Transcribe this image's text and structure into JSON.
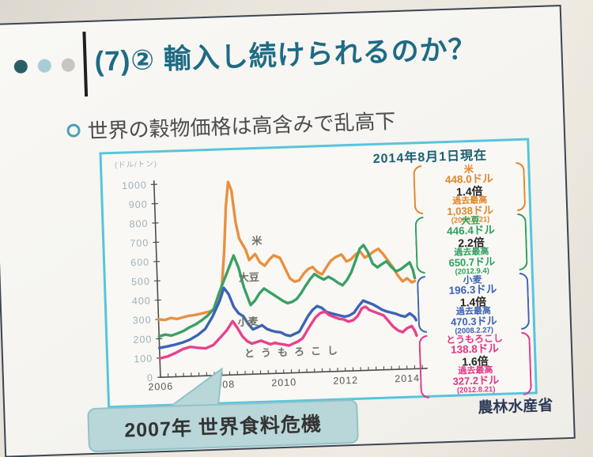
{
  "header": {
    "title": "(7)② 輸入し続けられるのか？",
    "title_color": "#1e6b84",
    "dots": [
      "#2b5f68",
      "#a7ced6",
      "#c6c6c3"
    ]
  },
  "bullet": {
    "text": "世界の穀物価格は高含みで乱高下"
  },
  "chart_panel": {
    "as_of": "2014年8月1日現在",
    "border_color": "#57c5dc",
    "commodity_boxes": [
      {
        "name": "米",
        "current": "448.0ドル",
        "multiplier": "1.4倍",
        "record_label": "過去最高",
        "record": "1,038ドル",
        "record_date": "(2008.5.21)",
        "color": "#e0862e"
      },
      {
        "name": "大豆",
        "current": "446.4ドル",
        "multiplier": "2.2倍",
        "record_label": "過去最高",
        "record": "650.7ドル",
        "record_date": "(2012.9.4)",
        "color": "#2f9e60"
      },
      {
        "name": "小麦",
        "current": "196.3ドル",
        "multiplier": "1.4倍",
        "record_label": "過去最高",
        "record": "470.3ドル",
        "record_date": "(2008.2.27)",
        "color": "#3c63b4"
      },
      {
        "name": "とうもろこし",
        "current": "138.8ドル",
        "multiplier": "1.6倍",
        "record_label": "過去最高",
        "record": "327.2ドル",
        "record_date": "(2012.8.21)",
        "color": "#e23487"
      }
    ]
  },
  "chart_data": {
    "type": "line",
    "ylabel": "(ドル/トン)",
    "xlim": [
      2006,
      2014.6
    ],
    "ylim": [
      0,
      1050
    ],
    "x_ticks": [
      2006,
      2008,
      2010,
      2012,
      2014
    ],
    "y_ticks": [
      0,
      100,
      200,
      300,
      400,
      500,
      600,
      700,
      800,
      900,
      1000
    ],
    "grid": false,
    "legend_position": "inline-labels",
    "series": [
      {
        "name": "米",
        "color": "#e89040",
        "label_pos": [
          186,
          120
        ],
        "label_spacing": 0,
        "points": [
          [
            2006.0,
            300
          ],
          [
            2006.2,
            296
          ],
          [
            2006.4,
            305
          ],
          [
            2006.6,
            299
          ],
          [
            2006.8,
            307
          ],
          [
            2007.0,
            314
          ],
          [
            2007.2,
            317
          ],
          [
            2007.4,
            323
          ],
          [
            2007.6,
            330
          ],
          [
            2007.8,
            338
          ],
          [
            2008.0,
            395
          ],
          [
            2008.1,
            480
          ],
          [
            2008.2,
            640
          ],
          [
            2008.3,
            870
          ],
          [
            2008.4,
            1000
          ],
          [
            2008.5,
            955
          ],
          [
            2008.6,
            790
          ],
          [
            2008.7,
            705
          ],
          [
            2008.9,
            645
          ],
          [
            2009.0,
            592
          ],
          [
            2009.2,
            622
          ],
          [
            2009.35,
            578
          ],
          [
            2009.5,
            560
          ],
          [
            2009.65,
            590
          ],
          [
            2009.8,
            612
          ],
          [
            2010.0,
            598
          ],
          [
            2010.15,
            545
          ],
          [
            2010.3,
            490
          ],
          [
            2010.45,
            472
          ],
          [
            2010.6,
            478
          ],
          [
            2010.75,
            512
          ],
          [
            2010.9,
            535
          ],
          [
            2011.05,
            545
          ],
          [
            2011.2,
            518
          ],
          [
            2011.35,
            505
          ],
          [
            2011.5,
            542
          ],
          [
            2011.65,
            575
          ],
          [
            2011.8,
            592
          ],
          [
            2012.0,
            605
          ],
          [
            2012.15,
            568
          ],
          [
            2012.3,
            578
          ],
          [
            2012.45,
            602
          ],
          [
            2012.6,
            618
          ],
          [
            2012.75,
            585
          ],
          [
            2012.9,
            598
          ],
          [
            2013.05,
            615
          ],
          [
            2013.2,
            628
          ],
          [
            2013.35,
            600
          ],
          [
            2013.5,
            565
          ],
          [
            2013.65,
            530
          ],
          [
            2013.8,
            487
          ],
          [
            2013.95,
            455
          ],
          [
            2014.1,
            470
          ],
          [
            2014.25,
            448
          ],
          [
            2014.35,
            455
          ]
        ]
      },
      {
        "name": "大豆",
        "color": "#3aa065",
        "label_pos": [
          168,
          166
        ],
        "label_spacing": 0,
        "points": [
          [
            2006.0,
            212
          ],
          [
            2006.2,
            220
          ],
          [
            2006.4,
            214
          ],
          [
            2006.6,
            224
          ],
          [
            2006.8,
            236
          ],
          [
            2007.0,
            254
          ],
          [
            2007.2,
            268
          ],
          [
            2007.4,
            288
          ],
          [
            2007.6,
            312
          ],
          [
            2007.8,
            345
          ],
          [
            2008.0,
            430
          ],
          [
            2008.2,
            505
          ],
          [
            2008.35,
            560
          ],
          [
            2008.5,
            618
          ],
          [
            2008.65,
            552
          ],
          [
            2008.8,
            452
          ],
          [
            2009.0,
            358
          ],
          [
            2009.15,
            382
          ],
          [
            2009.3,
            418
          ],
          [
            2009.45,
            442
          ],
          [
            2009.6,
            425
          ],
          [
            2009.75,
            408
          ],
          [
            2009.9,
            392
          ],
          [
            2010.05,
            375
          ],
          [
            2010.2,
            362
          ],
          [
            2010.35,
            368
          ],
          [
            2010.5,
            382
          ],
          [
            2010.65,
            412
          ],
          [
            2010.8,
            448
          ],
          [
            2010.95,
            482
          ],
          [
            2011.1,
            508
          ],
          [
            2011.25,
            492
          ],
          [
            2011.4,
            478
          ],
          [
            2011.55,
            492
          ],
          [
            2011.7,
            478
          ],
          [
            2011.85,
            460
          ],
          [
            2012.0,
            445
          ],
          [
            2012.15,
            472
          ],
          [
            2012.3,
            512
          ],
          [
            2012.45,
            572
          ],
          [
            2012.6,
            632
          ],
          [
            2012.72,
            650
          ],
          [
            2012.85,
            615
          ],
          [
            2013.0,
            552
          ],
          [
            2013.15,
            532
          ],
          [
            2013.3,
            548
          ],
          [
            2013.45,
            562
          ],
          [
            2013.6,
            532
          ],
          [
            2013.75,
            508
          ],
          [
            2013.9,
            518
          ],
          [
            2014.05,
            535
          ],
          [
            2014.2,
            552
          ],
          [
            2014.3,
            512
          ],
          [
            2014.35,
            470
          ]
        ]
      },
      {
        "name": "小麦",
        "color": "#3c63b4",
        "label_pos": [
          165,
          222
        ],
        "label_spacing": 0,
        "points": [
          [
            2006.0,
            152
          ],
          [
            2006.25,
            158
          ],
          [
            2006.5,
            166
          ],
          [
            2006.75,
            176
          ],
          [
            2007.0,
            190
          ],
          [
            2007.25,
            212
          ],
          [
            2007.5,
            242
          ],
          [
            2007.75,
            305
          ],
          [
            2008.0,
            385
          ],
          [
            2008.15,
            452
          ],
          [
            2008.3,
            418
          ],
          [
            2008.45,
            352
          ],
          [
            2008.6,
            318
          ],
          [
            2008.75,
            302
          ],
          [
            2008.9,
            262
          ],
          [
            2009.05,
            232
          ],
          [
            2009.2,
            242
          ],
          [
            2009.35,
            252
          ],
          [
            2009.5,
            232
          ],
          [
            2009.65,
            222
          ],
          [
            2009.8,
            215
          ],
          [
            2009.95,
            212
          ],
          [
            2010.1,
            198
          ],
          [
            2010.25,
            192
          ],
          [
            2010.4,
            202
          ],
          [
            2010.55,
            212
          ],
          [
            2010.7,
            252
          ],
          [
            2010.85,
            292
          ],
          [
            2011.0,
            322
          ],
          [
            2011.15,
            342
          ],
          [
            2011.3,
            332
          ],
          [
            2011.45,
            310
          ],
          [
            2011.6,
            302
          ],
          [
            2011.75,
            295
          ],
          [
            2011.9,
            288
          ],
          [
            2012.05,
            282
          ],
          [
            2012.2,
            288
          ],
          [
            2012.35,
            302
          ],
          [
            2012.5,
            335
          ],
          [
            2012.65,
            362
          ],
          [
            2012.8,
            352
          ],
          [
            2012.95,
            342
          ],
          [
            2013.1,
            328
          ],
          [
            2013.25,
            312
          ],
          [
            2013.4,
            302
          ],
          [
            2013.55,
            295
          ],
          [
            2013.7,
            288
          ],
          [
            2013.85,
            278
          ],
          [
            2014.0,
            272
          ],
          [
            2014.15,
            288
          ],
          [
            2014.3,
            268
          ],
          [
            2014.35,
            252
          ]
        ]
      },
      {
        "name": "とうもろこし",
        "color": "#e8418c",
        "label_pos": [
          172,
          262
        ],
        "label_spacing": 8,
        "points": [
          [
            2006.0,
            98
          ],
          [
            2006.25,
            106
          ],
          [
            2006.5,
            122
          ],
          [
            2006.75,
            142
          ],
          [
            2007.0,
            152
          ],
          [
            2007.25,
            146
          ],
          [
            2007.5,
            142
          ],
          [
            2007.75,
            158
          ],
          [
            2008.0,
            198
          ],
          [
            2008.2,
            232
          ],
          [
            2008.4,
            278
          ],
          [
            2008.55,
            242
          ],
          [
            2008.7,
            198
          ],
          [
            2008.85,
            172
          ],
          [
            2009.0,
            158
          ],
          [
            2009.15,
            165
          ],
          [
            2009.3,
            172
          ],
          [
            2009.45,
            162
          ],
          [
            2009.6,
            152
          ],
          [
            2009.75,
            158
          ],
          [
            2009.9,
            152
          ],
          [
            2010.05,
            148
          ],
          [
            2010.2,
            142
          ],
          [
            2010.35,
            152
          ],
          [
            2010.5,
            162
          ],
          [
            2010.65,
            178
          ],
          [
            2010.8,
            215
          ],
          [
            2010.95,
            252
          ],
          [
            2011.1,
            285
          ],
          [
            2011.25,
            305
          ],
          [
            2011.4,
            312
          ],
          [
            2011.55,
            292
          ],
          [
            2011.7,
            282
          ],
          [
            2011.85,
            272
          ],
          [
            2012.0,
            268
          ],
          [
            2012.15,
            256
          ],
          [
            2012.3,
            262
          ],
          [
            2012.45,
            282
          ],
          [
            2012.6,
            322
          ],
          [
            2012.72,
            330
          ],
          [
            2012.85,
            312
          ],
          [
            2013.0,
            302
          ],
          [
            2013.15,
            292
          ],
          [
            2013.3,
            282
          ],
          [
            2013.45,
            252
          ],
          [
            2013.6,
            222
          ],
          [
            2013.75,
            202
          ],
          [
            2013.9,
            192
          ],
          [
            2014.05,
            212
          ],
          [
            2014.2,
            222
          ],
          [
            2014.3,
            195
          ],
          [
            2014.35,
            172
          ]
        ]
      }
    ]
  },
  "callout": {
    "text": "2007年 世界食料危機"
  },
  "footer": {
    "source": "農林水産省"
  }
}
